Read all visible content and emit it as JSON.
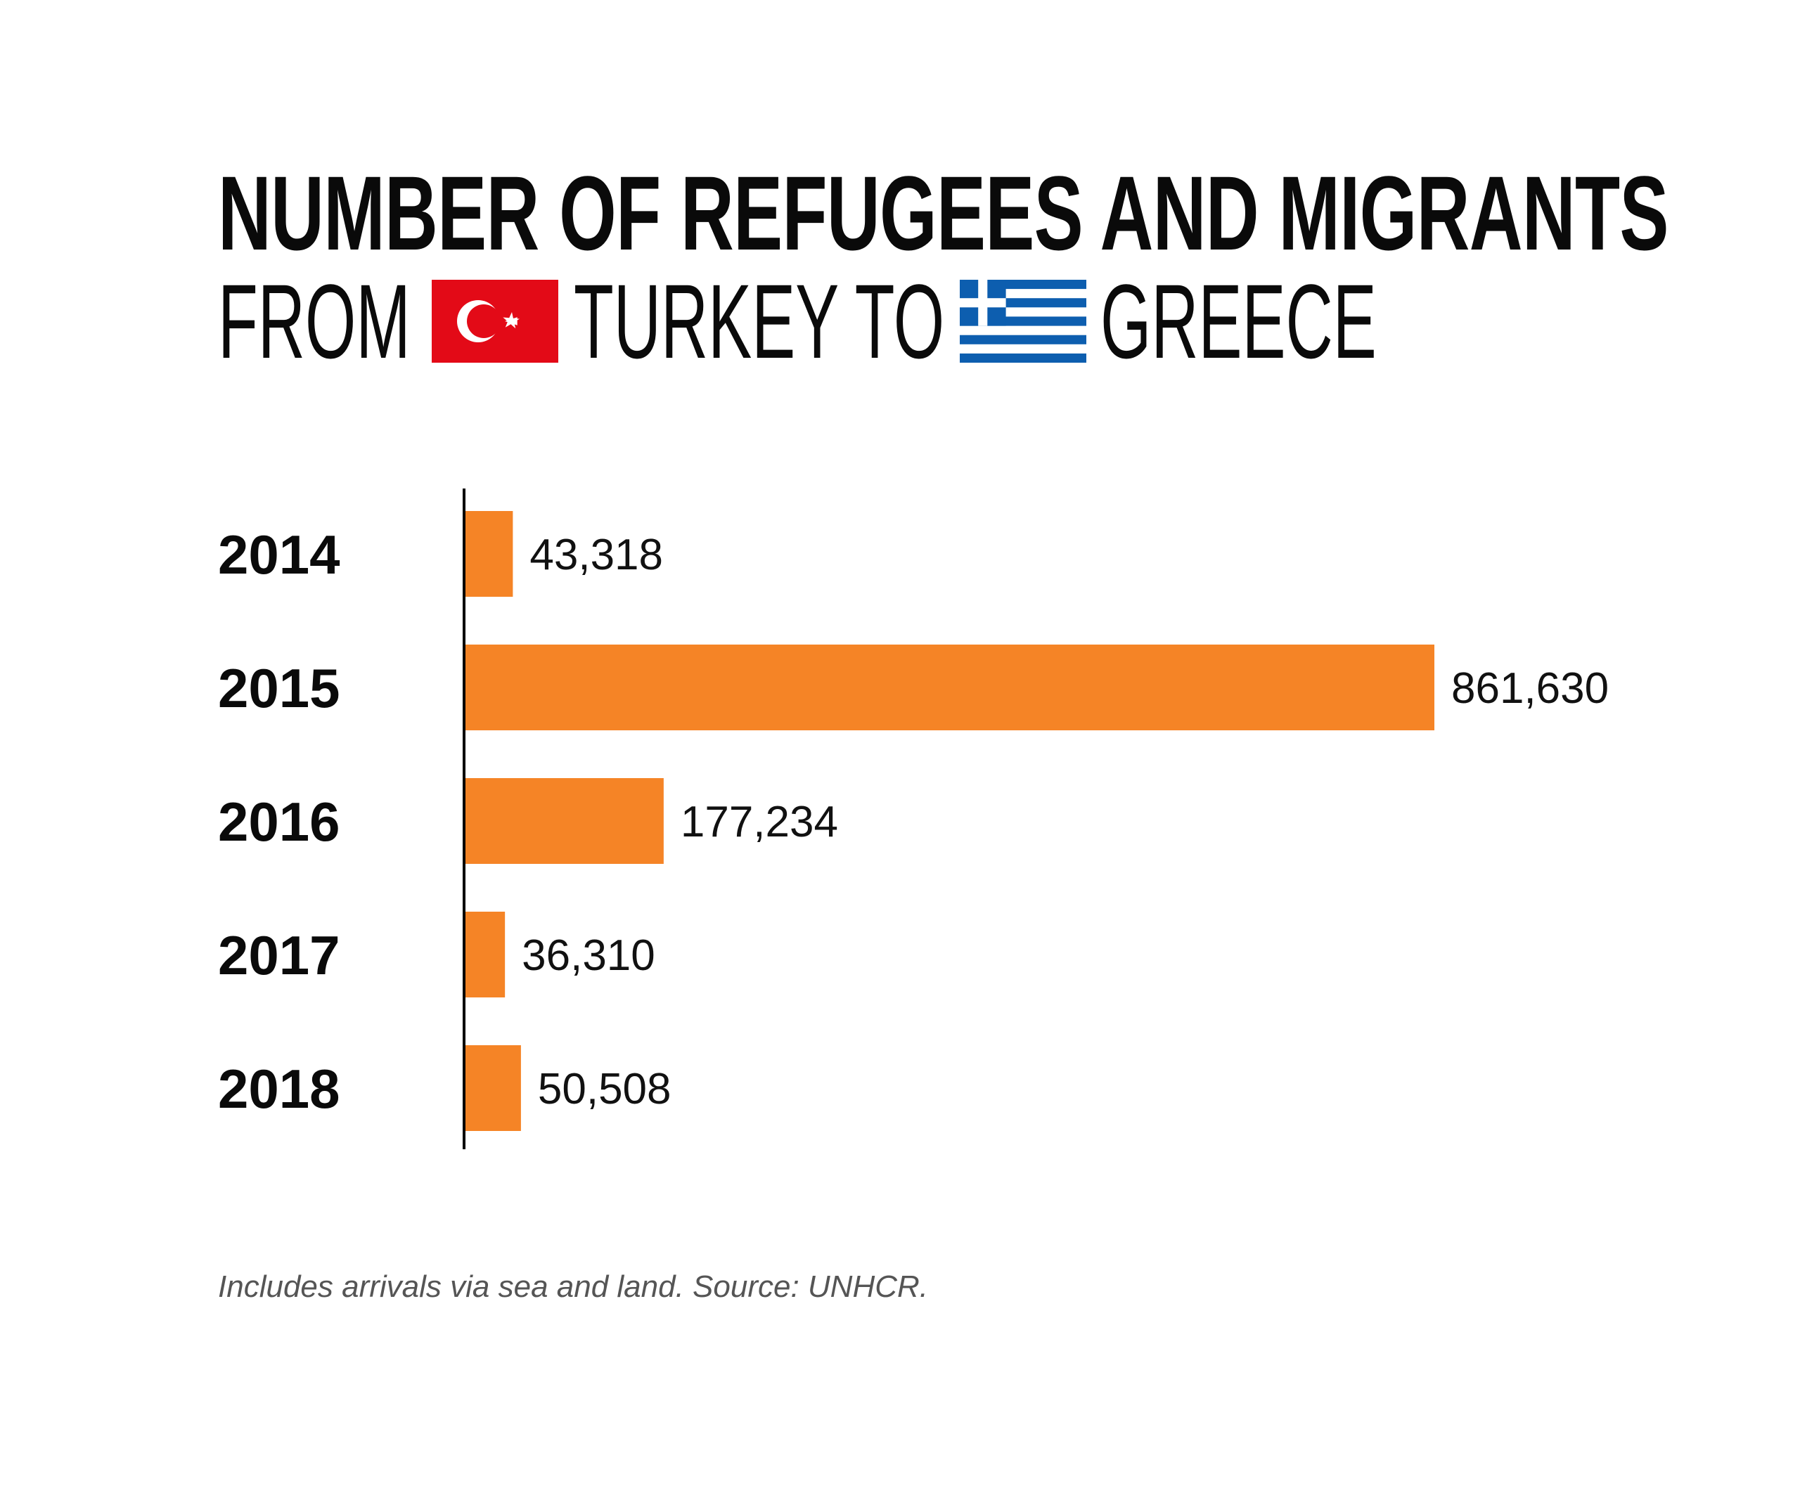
{
  "title": {
    "line1": "NUMBER OF REFUGEES AND MIGRANTS",
    "line2_part1": "FROM",
    "line2_part2": "TURKEY TO",
    "line2_part3": "GREECE",
    "flag1_icon": "turkey-flag-icon",
    "flag2_icon": "greece-flag-icon"
  },
  "colors": {
    "bar": "#f58426",
    "axis": "#000000",
    "turkey_red": "#e30a17",
    "greece_blue": "#0d5eaf"
  },
  "chart_data": {
    "type": "bar",
    "orientation": "horizontal",
    "categories": [
      "2014",
      "2015",
      "2016",
      "2017",
      "2018"
    ],
    "values": [
      43318,
      861630,
      177234,
      36310,
      50508
    ],
    "value_labels": [
      "43,318",
      "861,630",
      "177,234",
      "36,310",
      "50,508"
    ],
    "title": "NUMBER OF REFUGEES AND MIGRANTS FROM TURKEY TO GREECE",
    "xlabel": "",
    "ylabel": "",
    "grid": false,
    "legend": "none"
  },
  "footnote": "Includes arrivals via sea and land. Source: UNHCR."
}
